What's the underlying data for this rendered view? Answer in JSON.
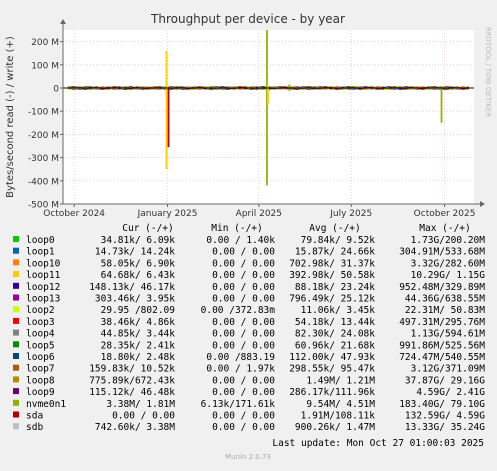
{
  "chart_data": {
    "type": "line",
    "title": "Throughput per device - by year",
    "ylabel": "Bytes/second read (-) / write (+)",
    "side_label": "RRDTOOL / TOBI OETIKER",
    "footer": "Munin 2.0.73",
    "ylim": [
      -500000000,
      250000000
    ],
    "yticks": [
      {
        "v": 200000000,
        "label": "200 M"
      },
      {
        "v": 100000000,
        "label": "100 M"
      },
      {
        "v": 0,
        "label": "0"
      },
      {
        "v": -100000000,
        "label": "-100 M"
      },
      {
        "v": -200000000,
        "label": "-200 M"
      },
      {
        "v": -300000000,
        "label": "-300 M"
      },
      {
        "v": -400000000,
        "label": "-400 M"
      },
      {
        "v": -500000000,
        "label": "-500 M"
      }
    ],
    "x_range": [
      "2024-09-20",
      "2025-10-30"
    ],
    "xticks": [
      {
        "date": "2024-10-01",
        "label": "October 2024"
      },
      {
        "date": "2025-01-01",
        "label": "January 2025"
      },
      {
        "date": "2025-04-01",
        "label": "April 2025"
      },
      {
        "date": "2025-07-01",
        "label": "July 2025"
      },
      {
        "date": "2025-10-01",
        "label": "October 2025"
      }
    ],
    "grid": true,
    "legend_headers": [
      "Cur (-/+)",
      "Min (-/+)",
      "Avg (-/+)",
      "Max (-/+)"
    ],
    "series": [
      {
        "name": "loop0",
        "color": "#00cc00",
        "cur": "34.81k/  6.09k",
        "min": "0.00 /  1.40k",
        "avg": "79.84k/  9.52k",
        "max": "1.73G/200.20M"
      },
      {
        "name": "loop1",
        "color": "#0066b3",
        "cur": "14.73k/ 14.24k",
        "min": "0.00 /  0.00",
        "avg": "15.87k/ 24.66k",
        "max": "304.91M/533.68M"
      },
      {
        "name": "loop10",
        "color": "#ff8000",
        "cur": "58.05k/  6.90k",
        "min": "0.00 /  0.00",
        "avg": "702.98k/ 31.37k",
        "max": "3.32G/282.60M"
      },
      {
        "name": "loop11",
        "color": "#ffcc00",
        "cur": "64.68k/  6.43k",
        "min": "0.00 /  0.00",
        "avg": "392.98k/ 50.58k",
        "max": "10.29G/  1.15G"
      },
      {
        "name": "loop12",
        "color": "#330099",
        "cur": "148.13k/ 46.17k",
        "min": "0.00 /  0.00",
        "avg": "88.18k/ 23.24k",
        "max": "952.48M/329.89M"
      },
      {
        "name": "loop13",
        "color": "#990099",
        "cur": "303.46k/  3.95k",
        "min": "0.00 /  0.00",
        "avg": "796.49k/ 25.12k",
        "max": "44.36G/638.55M"
      },
      {
        "name": "loop2",
        "color": "#ccff00",
        "cur": "29.95 /802.09",
        "min": "0.00 /372.83m",
        "avg": "11.06k/  3.45k",
        "max": "22.31M/ 50.83M"
      },
      {
        "name": "loop3",
        "color": "#ff0000",
        "cur": "38.46k/  4.86k",
        "min": "0.00 /  0.00",
        "avg": "54.18k/ 13.44k",
        "max": "497.31M/295.76M"
      },
      {
        "name": "loop4",
        "color": "#808080",
        "cur": "44.85k/  3.44k",
        "min": "0.00 /  0.00",
        "avg": "82.30k/ 24.08k",
        "max": "1.13G/594.61M"
      },
      {
        "name": "loop5",
        "color": "#008f00",
        "cur": "28.35k/  2.41k",
        "min": "0.00 /  0.00",
        "avg": "60.96k/ 21.68k",
        "max": "991.86M/525.56M"
      },
      {
        "name": "loop6",
        "color": "#00487d",
        "cur": "18.80k/  2.48k",
        "min": "0.00 /883.19",
        "avg": "112.00k/ 47.93k",
        "max": "724.47M/540.55M"
      },
      {
        "name": "loop7",
        "color": "#b35a00",
        "cur": "159.83k/ 10.52k",
        "min": "0.00 /  1.97k",
        "avg": "298.55k/ 95.47k",
        "max": "3.12G/371.09M"
      },
      {
        "name": "loop8",
        "color": "#b38f00",
        "cur": "775.89k/672.43k",
        "min": "0.00 /  0.00",
        "avg": "1.49M/  1.21M",
        "max": "37.87G/ 29.16G"
      },
      {
        "name": "loop9",
        "color": "#6b006b",
        "cur": "115.12k/ 46.48k",
        "min": "0.00 /  0.00",
        "avg": "286.17k/111.96k",
        "max": "4.59G/  2.41G"
      },
      {
        "name": "nvme0n1",
        "color": "#8fb300",
        "cur": "3.38M/  1.81M",
        "min": "6.13k/171.61k",
        "avg": "9.54M/  4.51M",
        "max": "183.40G/ 79.10G"
      },
      {
        "name": "sda",
        "color": "#b30000",
        "cur": "0.00 /  0.00",
        "min": "0.00 /  0.00",
        "avg": "1.91M/108.11k",
        "max": "132.59G/  4.59G"
      },
      {
        "name": "sdb",
        "color": "#bebebe",
        "cur": "742.60k/  3.38M",
        "min": "0.00 /  0.00",
        "avg": "900.26k/  1.47M",
        "max": "13.33G/ 35.24G"
      }
    ],
    "spikes": [
      {
        "series": "loop11",
        "date": "2024-12-31",
        "write": 160000000,
        "read": -350000000
      },
      {
        "series": "sda",
        "date": "2025-01-02",
        "write": 0,
        "read": -255000000
      },
      {
        "series": "nvme0n1",
        "date": "2025-04-09",
        "write": 250000000,
        "read": -420000000
      },
      {
        "series": "loop11",
        "date": "2025-04-10",
        "write": 10000000,
        "read": -70000000
      },
      {
        "series": "nvme0n1",
        "date": "2025-05-01",
        "write": 15000000,
        "read": -12000000
      },
      {
        "series": "nvme0n1",
        "date": "2025-09-28",
        "write": 8000000,
        "read": -150000000
      }
    ],
    "last_update": "Last update: Mon Oct 27 01:00:03 2025"
  }
}
